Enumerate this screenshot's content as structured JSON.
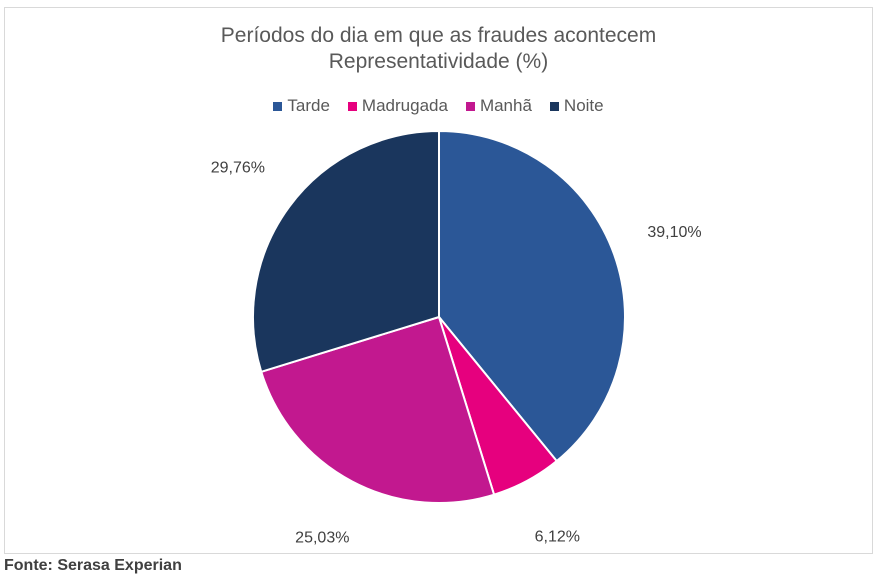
{
  "chart_data": {
    "type": "pie",
    "title": "Períodos do dia em que as fraudes acontecem",
    "subtitle": "Representatividade (%)",
    "legend_position": "top",
    "slices": [
      {
        "name": "Tarde",
        "value": 39.1,
        "label": "39,10%",
        "color": "#2b5797"
      },
      {
        "name": "Madrugada",
        "value": 6.12,
        "label": "6,12%",
        "color": "#e6007e"
      },
      {
        "name": "Manhã",
        "value": 25.03,
        "label": "25,03%",
        "color": "#c2188f"
      },
      {
        "name": "Noite",
        "value": 29.76,
        "label": "29,76%",
        "color": "#1a365d"
      }
    ]
  },
  "source": "Fonte: Serasa Experian"
}
